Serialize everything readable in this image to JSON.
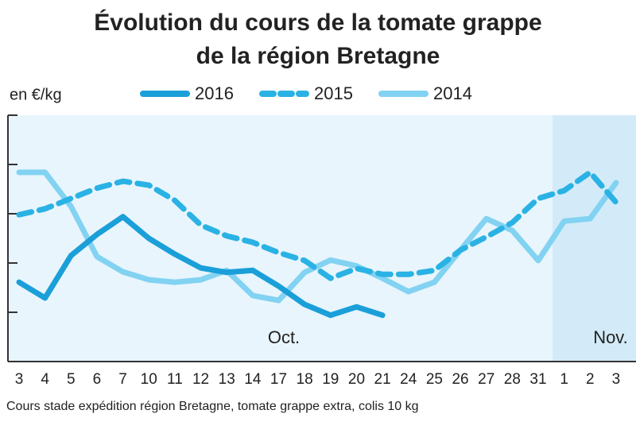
{
  "chart_data": {
    "type": "line",
    "title": [
      "Évolution du cours de la tomate grappe",
      "de la région Bretagne"
    ],
    "y_label": "en €/kg",
    "annotations": [
      "Oct.",
      "Nov."
    ],
    "source": "Cours stade expédition région Bretagne, tomate grappe extra, colis 10 kg",
    "categories": [
      "3",
      "4",
      "5",
      "6",
      "7",
      "10",
      "11",
      "12",
      "13",
      "14",
      "17",
      "18",
      "19",
      "20",
      "21",
      "24",
      "25",
      "26",
      "27",
      "28",
      "31",
      "1",
      "2",
      "3"
    ],
    "ylim": [
      0,
      5
    ],
    "yticks": [
      1,
      2,
      3,
      4,
      5
    ],
    "series": [
      {
        "name": "2016",
        "color": "#1a9fd9",
        "dash": false,
        "values": [
          1.61,
          1.29,
          2.15,
          2.58,
          2.94,
          2.5,
          2.18,
          1.9,
          1.81,
          1.85,
          1.53,
          1.16,
          0.94,
          1.11,
          0.94,
          null,
          null,
          null,
          null,
          null,
          null,
          null,
          null,
          null
        ]
      },
      {
        "name": "2015",
        "color": "#2ab2e4",
        "dash": true,
        "values": [
          2.98,
          3.1,
          3.31,
          3.52,
          3.66,
          3.58,
          3.27,
          2.77,
          2.55,
          2.42,
          2.21,
          2.05,
          1.69,
          1.89,
          1.77,
          1.77,
          1.85,
          2.26,
          2.53,
          2.82,
          3.31,
          3.47,
          3.84,
          3.23
        ]
      },
      {
        "name": "2014",
        "color": "#82d2f2",
        "dash": false,
        "values": [
          3.84,
          3.84,
          3.15,
          2.13,
          1.82,
          1.66,
          1.61,
          1.66,
          1.85,
          1.34,
          1.24,
          1.81,
          2.06,
          1.94,
          1.69,
          1.42,
          1.61,
          2.26,
          2.9,
          2.66,
          2.05,
          2.85,
          2.9,
          3.63
        ]
      }
    ]
  }
}
